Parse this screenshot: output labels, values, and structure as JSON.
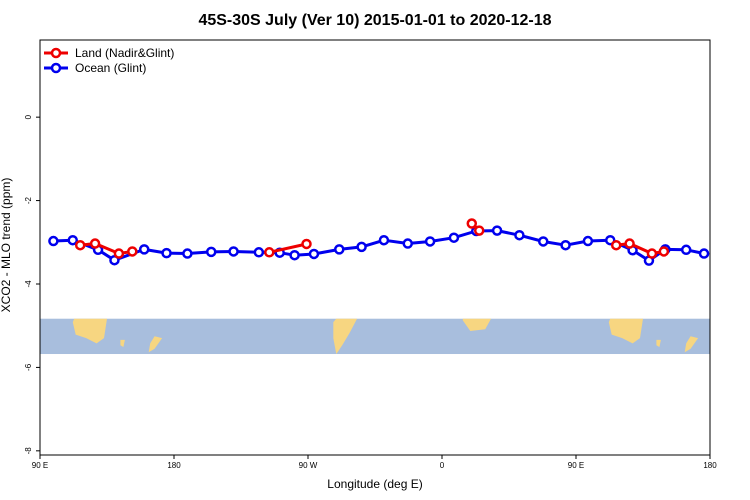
{
  "chart_data": {
    "type": "line",
    "title": "45S-30S July (Ver 10)   2015-01-01 to 2020-12-18",
    "xlabel": "Longitude (deg E)",
    "ylabel": "XCO2 - MLO trend (ppm)",
    "xlim": [
      90,
      540
    ],
    "ylim": [
      -8.1,
      1.85
    ],
    "x_ticks": [
      {
        "value": 90,
        "label": "90 E"
      },
      {
        "value": 180,
        "label": "180"
      },
      {
        "value": 270,
        "label": "90 W"
      },
      {
        "value": 360,
        "label": "0"
      },
      {
        "value": 450,
        "label": "90 E"
      },
      {
        "value": 540,
        "label": "180"
      }
    ],
    "y_ticks": [
      {
        "value": 0,
        "label": "0"
      },
      {
        "value": -2,
        "label": "-2"
      },
      {
        "value": -4,
        "label": "-4"
      },
      {
        "value": -6,
        "label": "-6"
      },
      {
        "value": -8,
        "label": "-8"
      }
    ],
    "map_band": {
      "y_top": -4.83,
      "y_bottom": -5.68,
      "ocean_color": "#a8bedd",
      "land_color": "#f7d681"
    },
    "legend_position": "top-left",
    "series": [
      {
        "name": "Land (Nadir&Glint)",
        "color": "#ee0000",
        "segments": [
          {
            "x": [
              117,
              127,
              143,
              152
            ],
            "y": [
              -3.07,
              -3.03,
              -3.27,
              -3.22
            ]
          },
          {
            "x": [
              244,
              269
            ],
            "y": [
              -3.24,
              -3.04
            ]
          },
          {
            "x": [
              380,
              385
            ],
            "y": [
              -2.55,
              -2.72
            ]
          },
          {
            "x": [
              477,
              486,
              501,
              509
            ],
            "y": [
              -3.07,
              -3.03,
              -3.27,
              -3.22
            ]
          }
        ]
      },
      {
        "name": "Ocean (Glint)",
        "color": "#0000ee",
        "segments": [
          {
            "x": [
              99,
              112,
              129,
              140,
              160,
              175,
              189,
              205,
              220,
              237,
              251,
              261,
              274,
              291,
              306,
              321,
              337,
              352,
              368,
              383,
              397,
              412,
              428,
              443,
              458,
              473,
              488,
              499,
              510,
              524,
              536
            ],
            "y": [
              -2.97,
              -2.95,
              -3.18,
              -3.43,
              -3.17,
              -3.26,
              -3.27,
              -3.23,
              -3.22,
              -3.24,
              -3.25,
              -3.31,
              -3.28,
              -3.17,
              -3.11,
              -2.95,
              -3.03,
              -2.98,
              -2.89,
              -2.73,
              -2.72,
              -2.83,
              -2.98,
              -3.07,
              -2.97,
              -2.95,
              -3.19,
              -3.44,
              -3.17,
              -3.18,
              -3.27
            ]
          }
        ]
      }
    ]
  }
}
